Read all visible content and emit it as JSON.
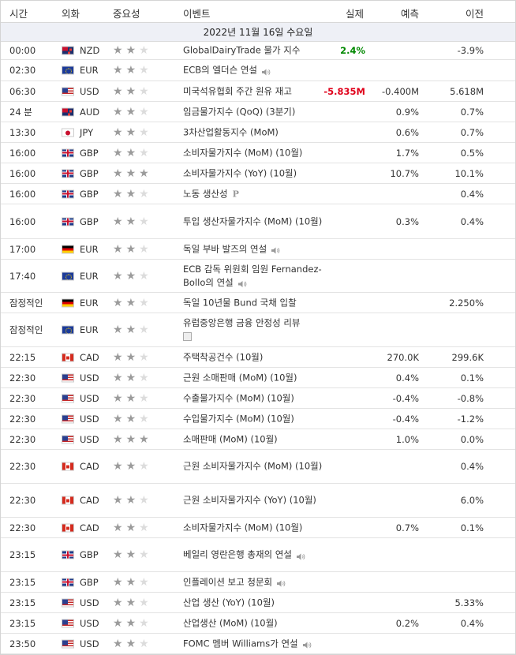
{
  "header": {
    "time": "시간",
    "currency": "외화",
    "importance": "중요성",
    "event": "이벤트",
    "actual": "실제",
    "forecast": "예측",
    "previous": "이전"
  },
  "date_label": "2022년 11월 16일 수요일",
  "rows": [
    {
      "time": "00:00",
      "flag": "nzd",
      "currency": "NZD",
      "stars": 2,
      "event": "GlobalDairyTrade 물가 지수",
      "actual": "2.4%",
      "actual_color": "green",
      "forecast": "",
      "previous": "-3.9%"
    },
    {
      "time": "02:30",
      "flag": "eur",
      "currency": "EUR",
      "stars": 2,
      "event": "ECB의 엘더슨 연설",
      "icon": "speaker-icon",
      "actual": "",
      "forecast": "",
      "previous": ""
    },
    {
      "time": "06:30",
      "flag": "usd",
      "currency": "USD",
      "stars": 2,
      "event": "미국석유협회 주간 원유 재고",
      "actual": "-5.835M",
      "actual_color": "red",
      "forecast": "-0.400M",
      "previous": "5.618M"
    },
    {
      "time": "24 분",
      "flag": "aud",
      "currency": "AUD",
      "stars": 2,
      "event": "임금물가지수 (QoQ) (3분기)",
      "actual": "",
      "forecast": "0.9%",
      "previous": "0.7%"
    },
    {
      "time": "13:30",
      "flag": "jpy",
      "currency": "JPY",
      "stars": 2,
      "event": "3차산업활동지수 (MoM)",
      "actual": "",
      "forecast": "0.6%",
      "previous": "0.7%"
    },
    {
      "time": "16:00",
      "flag": "gbp",
      "currency": "GBP",
      "stars": 2,
      "event": "소비자물가지수 (MoM) (10월)",
      "actual": "",
      "forecast": "1.7%",
      "previous": "0.5%"
    },
    {
      "time": "16:00",
      "flag": "gbp",
      "currency": "GBP",
      "stars": 3,
      "event": "소비자물가지수 (YoY) (10월)",
      "actual": "",
      "forecast": "10.7%",
      "previous": "10.1%"
    },
    {
      "time": "16:00",
      "flag": "gbp",
      "currency": "GBP",
      "stars": 2,
      "event": "노동 생산성",
      "icon": "preliminary-icon",
      "actual": "",
      "forecast": "",
      "previous": "0.4%"
    },
    {
      "time": "16:00",
      "flag": "gbp",
      "currency": "GBP",
      "stars": 2,
      "event": "투입 생산자물가지수 (MoM) (10월)",
      "actual": "",
      "forecast": "0.3%",
      "previous": "0.4%"
    },
    {
      "time": "17:00",
      "flag": "deu",
      "currency": "EUR",
      "stars": 2,
      "event": "독일 부바 발즈의 연설",
      "icon": "speaker-icon",
      "actual": "",
      "forecast": "",
      "previous": ""
    },
    {
      "time": "17:40",
      "flag": "eur",
      "currency": "EUR",
      "stars": 2,
      "event": "ECB 감독 위원회 임원 Fernandez-Bollo의 연설",
      "icon": "speaker-icon",
      "actual": "",
      "forecast": "",
      "previous": ""
    },
    {
      "time": "잠정적인",
      "flag": "deu",
      "currency": "EUR",
      "stars": 2,
      "event": "독일 10년물 Bund 국채 입찰",
      "actual": "",
      "forecast": "",
      "previous": "2.250%"
    },
    {
      "time": "잠정적인",
      "flag": "eur",
      "currency": "EUR",
      "stars": 2,
      "event": "유럽중앙은행 금융 안정성 리뷰",
      "icon": "document-icon",
      "actual": "",
      "forecast": "",
      "previous": ""
    },
    {
      "time": "22:15",
      "flag": "cad",
      "currency": "CAD",
      "stars": 2,
      "event": "주택착공건수 (10월)",
      "actual": "",
      "forecast": "270.0K",
      "previous": "299.6K"
    },
    {
      "time": "22:30",
      "flag": "usd",
      "currency": "USD",
      "stars": 2,
      "event": "근원 소매판매 (MoM) (10월)",
      "actual": "",
      "forecast": "0.4%",
      "previous": "0.1%"
    },
    {
      "time": "22:30",
      "flag": "usd",
      "currency": "USD",
      "stars": 2,
      "event": "수출물가지수 (MoM) (10월)",
      "actual": "",
      "forecast": "-0.4%",
      "previous": "-0.8%"
    },
    {
      "time": "22:30",
      "flag": "usd",
      "currency": "USD",
      "stars": 2,
      "event": "수입물가지수 (MoM) (10월)",
      "actual": "",
      "forecast": "-0.4%",
      "previous": "-1.2%"
    },
    {
      "time": "22:30",
      "flag": "usd",
      "currency": "USD",
      "stars": 3,
      "event": "소매판매 (MoM) (10월)",
      "actual": "",
      "forecast": "1.0%",
      "previous": "0.0%"
    },
    {
      "time": "22:30",
      "flag": "cad",
      "currency": "CAD",
      "stars": 2,
      "event": "근원 소비자물가지수 (MoM) (10월)",
      "actual": "",
      "forecast": "",
      "previous": "0.4%"
    },
    {
      "time": "22:30",
      "flag": "cad",
      "currency": "CAD",
      "stars": 2,
      "event": "근원 소비자물가지수 (YoY) (10월)",
      "actual": "",
      "forecast": "",
      "previous": "6.0%"
    },
    {
      "time": "22:30",
      "flag": "cad",
      "currency": "CAD",
      "stars": 2,
      "event": "소비자물가지수 (MoM) (10월)",
      "actual": "",
      "forecast": "0.7%",
      "previous": "0.1%"
    },
    {
      "time": "23:15",
      "flag": "gbp",
      "currency": "GBP",
      "stars": 2,
      "event": "베일리 영란은행 총재의 연설",
      "icon": "speaker-icon",
      "actual": "",
      "forecast": "",
      "previous": ""
    },
    {
      "time": "23:15",
      "flag": "gbp",
      "currency": "GBP",
      "stars": 2,
      "event": "인플레이션 보고 청문회",
      "icon": "speaker-icon",
      "actual": "",
      "forecast": "",
      "previous": ""
    },
    {
      "time": "23:15",
      "flag": "usd",
      "currency": "USD",
      "stars": 2,
      "event": "산업 생산 (YoY) (10월)",
      "actual": "",
      "forecast": "",
      "previous": "5.33%"
    },
    {
      "time": "23:15",
      "flag": "usd",
      "currency": "USD",
      "stars": 2,
      "event": "산업생산 (MoM) (10월)",
      "actual": "",
      "forecast": "0.2%",
      "previous": "0.4%"
    },
    {
      "time": "23:50",
      "flag": "usd",
      "currency": "USD",
      "stars": 2,
      "event": "FOMC 멤버 Williams가 연설",
      "icon": "speaker-icon",
      "actual": "",
      "forecast": "",
      "previous": ""
    }
  ]
}
